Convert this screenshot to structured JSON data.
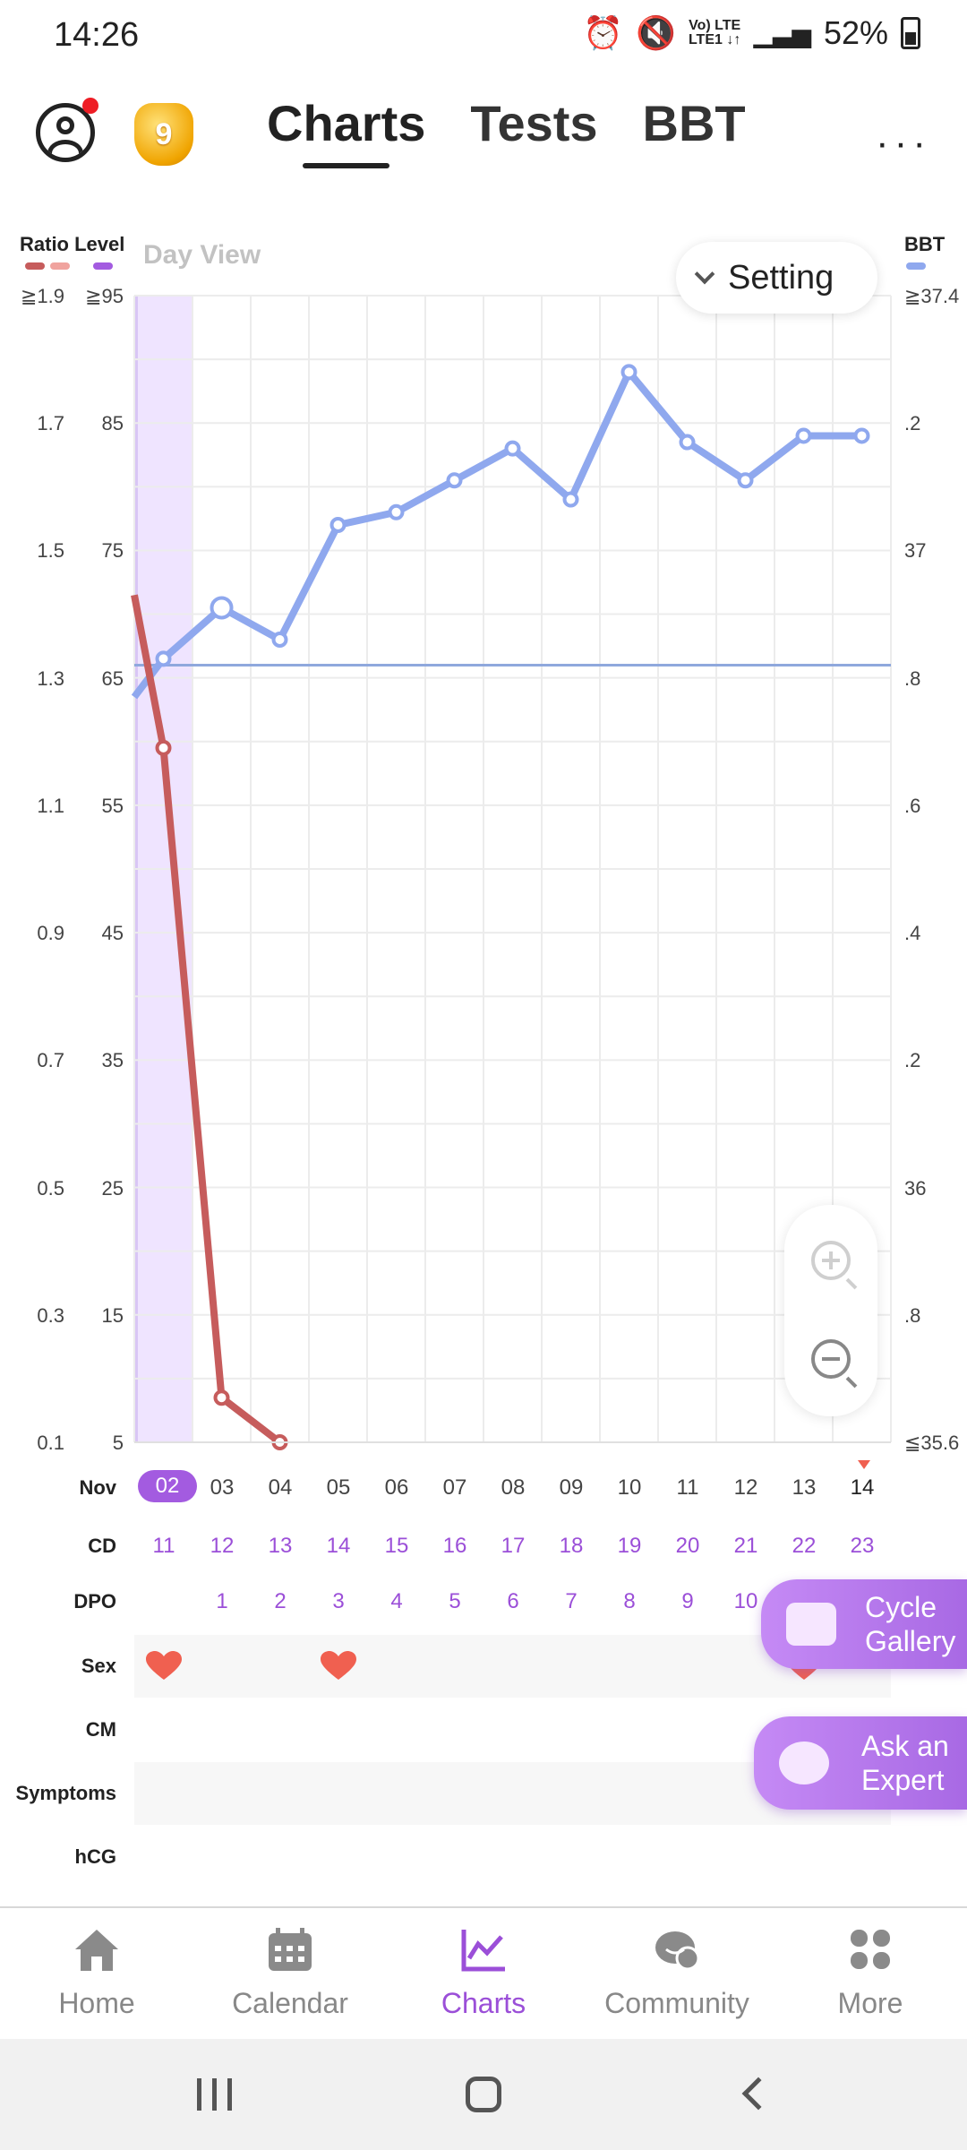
{
  "status_bar": {
    "time": "14:26",
    "battery": "52%",
    "net_top": "Vo) LTE",
    "net_bottom": "LTE1 ↓↑"
  },
  "header": {
    "level": "9",
    "tabs": [
      {
        "label": "Charts",
        "active": true
      },
      {
        "label": "Tests",
        "active": false
      },
      {
        "label": "BBT",
        "active": false
      }
    ],
    "more": "···"
  },
  "chart_controls": {
    "legend_left": "Ratio Level",
    "legend_right": "BBT",
    "day_view": "Day View",
    "setting": "Setting",
    "colors": {
      "ratio": "#c65c5c",
      "ratio_light": "#f0a39e",
      "level": "#a35be0",
      "bbt": "#8fa8ee",
      "highlight": "#efe4ff"
    }
  },
  "chart_data": {
    "type": "line",
    "y_ratio_ticks": [
      "≧1.9",
      "1.7",
      "1.5",
      "1.3",
      "1.1",
      "0.9",
      "0.7",
      "0.5",
      "0.3",
      "0.1"
    ],
    "y_level_ticks": [
      "≧95",
      "85",
      "75",
      "65",
      "55",
      "45",
      "35",
      "25",
      "15",
      "5"
    ],
    "y_bbt_ticks": [
      "≧37.4",
      ".2",
      "37",
      ".8",
      ".6",
      ".4",
      ".2",
      "36",
      ".8",
      "≦35.6"
    ],
    "x_month": "Nov",
    "x": [
      "02",
      "03",
      "04",
      "05",
      "06",
      "07",
      "08",
      "09",
      "10",
      "11",
      "12",
      "13",
      "14"
    ],
    "selected_index": 0,
    "today_index": 12,
    "bbt": {
      "name": "BBT",
      "values": [
        36.83,
        36.91,
        36.86,
        37.04,
        37.06,
        37.11,
        37.16,
        37.08,
        37.28,
        37.17,
        37.11,
        37.18,
        37.18
      ],
      "left_edge_value": 36.77,
      "coverline": 36.82,
      "ovulation_marker_index": 1
    },
    "ratio": {
      "name": "Ratio",
      "values": [
        1.19,
        0.17,
        0.1
      ],
      "start_index": 0,
      "left_edge_value": 1.43
    }
  },
  "rows": {
    "cd_label": "CD",
    "cd": [
      "11",
      "12",
      "13",
      "14",
      "15",
      "16",
      "17",
      "18",
      "19",
      "20",
      "21",
      "22",
      "23"
    ],
    "dpo_label": "DPO",
    "dpo": [
      "",
      "1",
      "2",
      "3",
      "4",
      "5",
      "6",
      "7",
      "8",
      "9",
      "10",
      "",
      ""
    ],
    "sex_label": "Sex",
    "sex_days": [
      0,
      3,
      11
    ],
    "cm_label": "CM",
    "symptoms_label": "Symptoms",
    "hcg_label": "hCG"
  },
  "floating": {
    "gallery_line1": "Cycle",
    "gallery_line2": "Gallery",
    "expert_line1": "Ask an",
    "expert_line2": "Expert"
  },
  "bottom_nav": [
    {
      "label": "Home",
      "icon": "home-icon"
    },
    {
      "label": "Calendar",
      "icon": "calendar-icon"
    },
    {
      "label": "Charts",
      "icon": "chart-icon",
      "active": true
    },
    {
      "label": "Community",
      "icon": "community-icon"
    },
    {
      "label": "More",
      "icon": "more-grid-icon"
    }
  ]
}
